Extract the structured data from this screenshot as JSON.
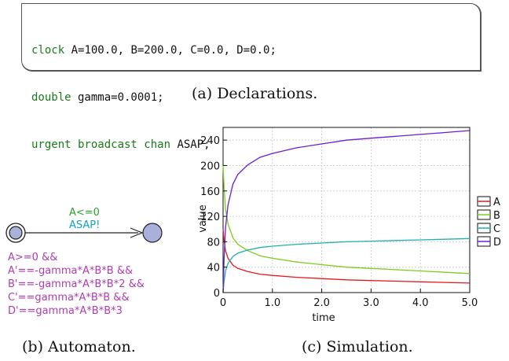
{
  "declarations": {
    "lines": [
      {
        "kw": "clock",
        "rest": " A=100.0, B=200.0, C=0.0, D=0.0;"
      },
      {
        "kw": "double",
        "rest": " gamma=0.0001;"
      },
      {
        "kw": "urgent broadcast chan",
        "rest": " ASAP;"
      }
    ]
  },
  "captions": {
    "a": "(a) Declarations.",
    "b": "(b) Automaton.",
    "c": "(c) Simulation."
  },
  "automaton": {
    "guard": "A<=0",
    "sync": "ASAP!",
    "invariant": [
      "A>=0 &&",
      "A'==-gamma*A*B*B &&",
      "B'==-gamma*A*B*B*2 &&",
      "C'==gamma*A*B*B &&",
      "D'==gamma*A*B*B*3"
    ],
    "colors": {
      "guard": "#2ca02c",
      "sync": "#17a2b8",
      "invariant": "#b03cb0",
      "location": "#a9b1db"
    }
  },
  "chart_data": {
    "type": "line",
    "xlabel": "time",
    "ylabel": "value",
    "xlim": [
      0,
      5
    ],
    "ylim": [
      0,
      260
    ],
    "xticks": [
      "0",
      "1.0",
      "2.0",
      "3.0",
      "4.0",
      "5.0"
    ],
    "yticks": [
      "0",
      "40",
      "80",
      "120",
      "160",
      "200",
      "240"
    ],
    "grid": true,
    "legend_position": "right",
    "x": [
      0,
      0.02,
      0.05,
      0.1,
      0.2,
      0.3,
      0.5,
      0.75,
      1.0,
      1.5,
      2.0,
      2.5,
      3.0,
      3.5,
      4.0,
      4.5,
      5.0
    ],
    "series": [
      {
        "name": "A",
        "color": "#e41a1c",
        "values": [
          100,
          82,
          66,
          54,
          43,
          38,
          33,
          29,
          27,
          24,
          22,
          20,
          19,
          18,
          17,
          16,
          15
        ]
      },
      {
        "name": "B",
        "color": "#7ccd1e",
        "values": [
          200,
          164,
          132,
          108,
          86,
          76,
          66,
          58,
          54,
          48,
          44,
          40,
          38,
          36,
          34,
          32,
          30
        ]
      },
      {
        "name": "C",
        "color": "#20b2aa",
        "values": [
          0,
          18,
          34,
          46,
          57,
          62,
          67,
          71,
          73,
          76,
          78,
          80,
          81,
          82,
          83,
          84,
          85
        ]
      },
      {
        "name": "D",
        "color": "#6a1fd1",
        "values": [
          0,
          54,
          102,
          138,
          171,
          186,
          201,
          213,
          219,
          228,
          234,
          240,
          243,
          246,
          249,
          252,
          255
        ]
      }
    ]
  }
}
